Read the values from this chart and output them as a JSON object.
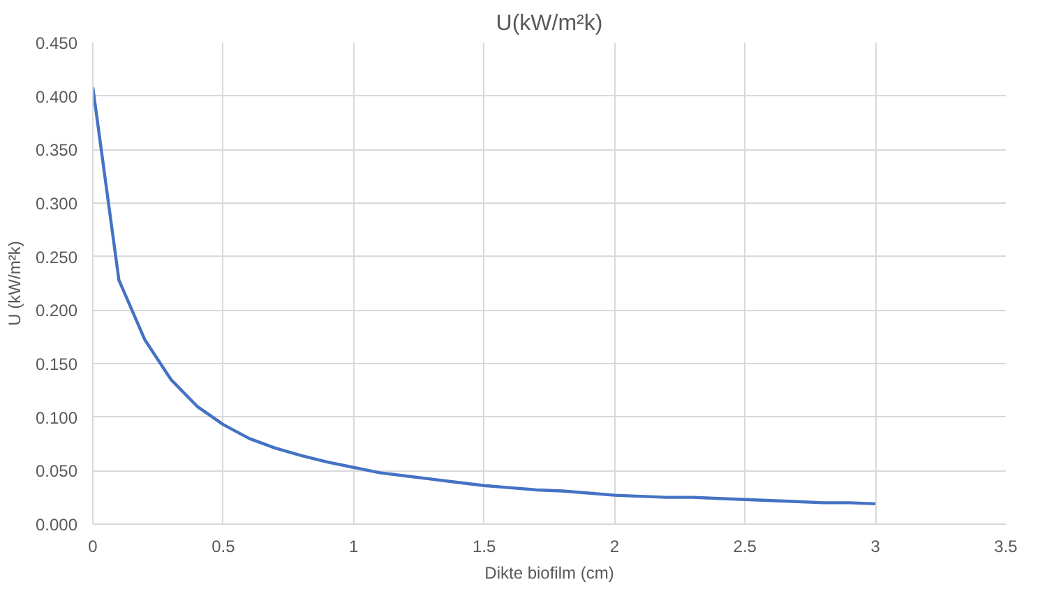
{
  "chart_data": {
    "type": "line",
    "title": "U(kW/m²k)",
    "xlabel": "Dikte biofilm (cm)",
    "ylabel": "U (kW/m²k)",
    "x": [
      0,
      0.1,
      0.2,
      0.3,
      0.4,
      0.5,
      0.6,
      0.7,
      0.8,
      0.9,
      1.0,
      1.1,
      1.2,
      1.3,
      1.4,
      1.5,
      1.6,
      1.7,
      1.8,
      1.9,
      2.0,
      2.1,
      2.2,
      2.3,
      2.4,
      2.5,
      2.6,
      2.7,
      2.8,
      2.9,
      3.0
    ],
    "series": [
      {
        "color": "#4472c4",
        "values": [
          0.408,
          0.228,
          0.172,
          0.135,
          0.11,
          0.093,
          0.08,
          0.071,
          0.064,
          0.058,
          0.053,
          0.048,
          0.045,
          0.042,
          0.039,
          0.036,
          0.034,
          0.032,
          0.031,
          0.029,
          0.027,
          0.026,
          0.025,
          0.025,
          0.024,
          0.023,
          0.022,
          0.021,
          0.02,
          0.02,
          0.019
        ]
      }
    ],
    "xlim": [
      0,
      3.5
    ],
    "xticks": [
      0,
      0.5,
      1,
      1.5,
      2,
      2.5,
      3,
      3.5
    ],
    "ylim": [
      0,
      0.45
    ],
    "yticks": [
      {
        "value": 0,
        "label": "0.000"
      },
      {
        "value": 0.05,
        "label": "0.050"
      },
      {
        "value": 0.1,
        "label": "0.100"
      },
      {
        "value": 0.15,
        "label": "0.150"
      },
      {
        "value": 0.2,
        "label": "0.200"
      },
      {
        "value": 0.25,
        "label": "0.250"
      },
      {
        "value": 0.3,
        "label": "0.300"
      },
      {
        "value": 0.35,
        "label": "0.350"
      },
      {
        "value": 0.4,
        "label": "0.400"
      },
      {
        "value": 0.45,
        "label": "0.450"
      }
    ],
    "grid": true,
    "marker": "none",
    "line_style": "solid"
  }
}
